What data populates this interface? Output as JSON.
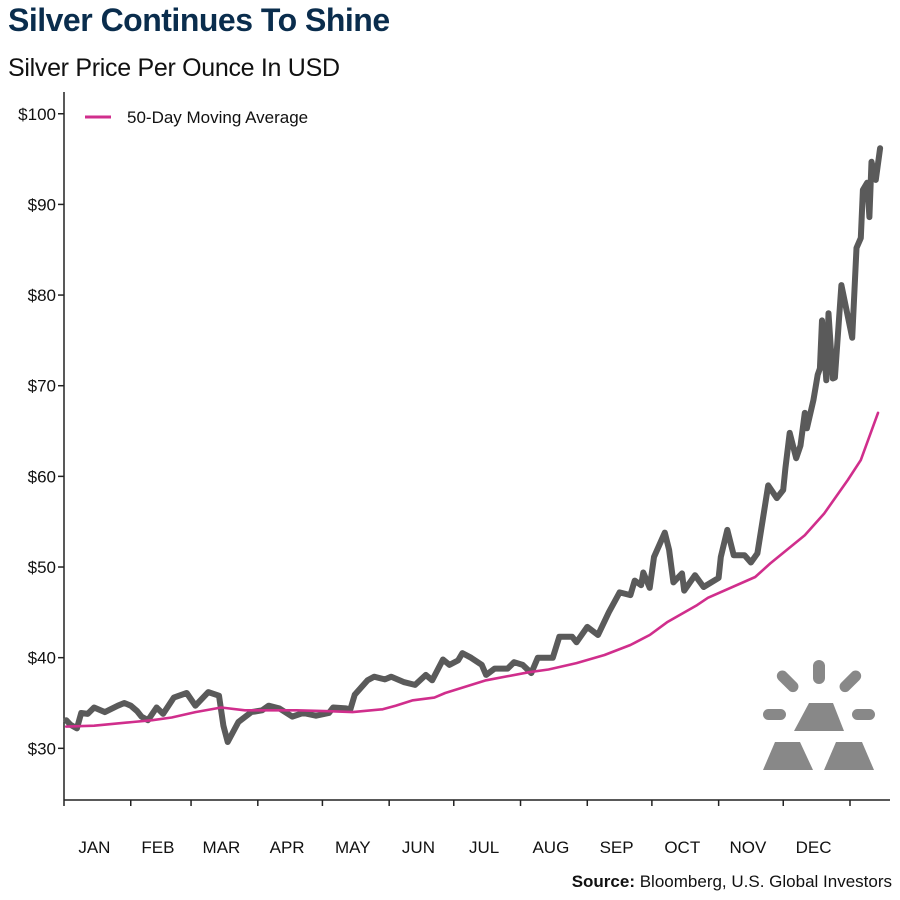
{
  "title": "Silver Continues To Shine",
  "subtitle": "Silver Price Per Ounce In USD",
  "source": {
    "label": "Source:",
    "text": "Bloomberg, U.S. Global Investors"
  },
  "colors": {
    "title": "#0a2d4d",
    "silver_price": "#5a5a5a",
    "moving_average": "#d02e8c",
    "icon": "#888888"
  },
  "icon": "silver-bars-icon",
  "chart_data": {
    "type": "line",
    "title": "Silver Continues To Shine",
    "subtitle": "Silver Price Per Ounce In USD",
    "xlabel": "",
    "ylabel": "",
    "ylim": [
      24.3,
      102.4
    ],
    "xlim": [
      "2025-01-01",
      "2026-01-19"
    ],
    "grid": false,
    "legend": {
      "placement": "top-left",
      "entries": [
        "50-Day Moving Average"
      ]
    },
    "y_ticks": [
      30,
      40,
      50,
      60,
      70,
      80,
      90,
      100
    ],
    "y_tick_labels": [
      "$30",
      "$40",
      "$50",
      "$60",
      "$70",
      "$80",
      "$90",
      "$100"
    ],
    "x_tick_labels": [
      "JAN",
      "FEB",
      "MAR",
      "APR",
      "MAY",
      "JUN",
      "JUL",
      "AUG",
      "SEP",
      "OCT",
      "NOV",
      "DEC"
    ],
    "series": [
      {
        "key": "silver",
        "color": "#5a5a5a",
        "points": [
          [
            "2025-01-02",
            33.1
          ],
          [
            "2025-01-04",
            32.6
          ],
          [
            "2025-01-07",
            32.2
          ],
          [
            "2025-01-09",
            33.9
          ],
          [
            "2025-01-12",
            33.8
          ],
          [
            "2025-01-15",
            34.5
          ],
          [
            "2025-01-20",
            34.0
          ],
          [
            "2025-01-26",
            34.7
          ],
          [
            "2025-01-29",
            35.0
          ],
          [
            "2025-02-01",
            34.7
          ],
          [
            "2025-02-04",
            34.1
          ],
          [
            "2025-02-06",
            33.5
          ],
          [
            "2025-02-09",
            33.1
          ],
          [
            "2025-02-13",
            34.5
          ],
          [
            "2025-02-16",
            33.8
          ],
          [
            "2025-02-21",
            35.6
          ],
          [
            "2025-02-27",
            36.1
          ],
          [
            "2025-03-03",
            34.7
          ],
          [
            "2025-03-09",
            36.2
          ],
          [
            "2025-03-14",
            35.8
          ],
          [
            "2025-03-16",
            32.5
          ],
          [
            "2025-03-18",
            30.7
          ],
          [
            "2025-03-23",
            32.9
          ],
          [
            "2025-03-29",
            34.0
          ],
          [
            "2025-04-03",
            34.2
          ],
          [
            "2025-04-06",
            34.7
          ],
          [
            "2025-04-11",
            34.4
          ],
          [
            "2025-04-17",
            33.5
          ],
          [
            "2025-04-22",
            33.9
          ],
          [
            "2025-04-28",
            33.6
          ],
          [
            "2025-05-04",
            33.9
          ],
          [
            "2025-05-06",
            34.5
          ],
          [
            "2025-05-12",
            34.4
          ],
          [
            "2025-05-14",
            34.3
          ],
          [
            "2025-05-16",
            35.9
          ],
          [
            "2025-05-22",
            37.5
          ],
          [
            "2025-05-25",
            37.9
          ],
          [
            "2025-05-30",
            37.6
          ],
          [
            "2025-06-02",
            37.9
          ],
          [
            "2025-06-08",
            37.3
          ],
          [
            "2025-06-13",
            37.0
          ],
          [
            "2025-06-18",
            38.1
          ],
          [
            "2025-06-21",
            37.5
          ],
          [
            "2025-06-26",
            39.8
          ],
          [
            "2025-06-29",
            39.2
          ],
          [
            "2025-07-03",
            39.7
          ],
          [
            "2025-07-05",
            40.5
          ],
          [
            "2025-07-09",
            40.0
          ],
          [
            "2025-07-14",
            39.2
          ],
          [
            "2025-07-16",
            38.1
          ],
          [
            "2025-07-20",
            38.8
          ],
          [
            "2025-07-26",
            38.8
          ],
          [
            "2025-07-29",
            39.5
          ],
          [
            "2025-08-02",
            39.2
          ],
          [
            "2025-08-06",
            38.3
          ],
          [
            "2025-08-09",
            40.0
          ],
          [
            "2025-08-16",
            40.0
          ],
          [
            "2025-08-19",
            42.3
          ],
          [
            "2025-08-25",
            42.3
          ],
          [
            "2025-08-27",
            41.7
          ],
          [
            "2025-09-01",
            43.4
          ],
          [
            "2025-09-06",
            42.5
          ],
          [
            "2025-09-11",
            45.0
          ],
          [
            "2025-09-16",
            47.2
          ],
          [
            "2025-09-21",
            46.9
          ],
          [
            "2025-09-23",
            48.5
          ],
          [
            "2025-09-26",
            48.0
          ],
          [
            "2025-09-27",
            49.4
          ],
          [
            "2025-09-30",
            47.7
          ],
          [
            "2025-10-02",
            51.1
          ],
          [
            "2025-10-07",
            53.8
          ],
          [
            "2025-10-09",
            51.9
          ],
          [
            "2025-10-11",
            48.3
          ],
          [
            "2025-10-15",
            49.3
          ],
          [
            "2025-10-16",
            47.4
          ],
          [
            "2025-10-21",
            49.1
          ],
          [
            "2025-10-25",
            47.8
          ],
          [
            "2025-11-01",
            48.8
          ],
          [
            "2025-11-02",
            51.1
          ],
          [
            "2025-11-05",
            54.1
          ],
          [
            "2025-11-08",
            51.3
          ],
          [
            "2025-11-13",
            51.3
          ],
          [
            "2025-11-16",
            50.5
          ],
          [
            "2025-11-19",
            51.5
          ],
          [
            "2025-11-24",
            59.0
          ],
          [
            "2025-11-28",
            57.6
          ],
          [
            "2025-12-01",
            58.5
          ],
          [
            "2025-12-02",
            60.9
          ],
          [
            "2025-12-04",
            64.8
          ],
          [
            "2025-12-07",
            62.0
          ],
          [
            "2025-12-09",
            63.4
          ],
          [
            "2025-12-11",
            67.0
          ],
          [
            "2025-12-12",
            65.3
          ],
          [
            "2025-12-15",
            68.4
          ],
          [
            "2025-12-17",
            71.2
          ],
          [
            "2025-12-18",
            71.9
          ],
          [
            "2025-12-19",
            77.2
          ],
          [
            "2025-12-21",
            70.6
          ],
          [
            "2025-12-22",
            78.0
          ],
          [
            "2025-12-24",
            70.8
          ],
          [
            "2025-12-25",
            70.9
          ],
          [
            "2025-12-28",
            81.1
          ],
          [
            "2026-01-02",
            75.3
          ],
          [
            "2026-01-04",
            85.2
          ],
          [
            "2026-01-06",
            86.3
          ],
          [
            "2026-01-07",
            91.6
          ],
          [
            "2026-01-09",
            92.4
          ],
          [
            "2026-01-10",
            88.6
          ],
          [
            "2026-01-11",
            94.7
          ],
          [
            "2026-01-13",
            92.7
          ],
          [
            "2026-01-15",
            96.2
          ]
        ]
      },
      {
        "key": "ma50",
        "name": "50-Day Moving Average",
        "color": "#d02e8c",
        "points": [
          [
            "2025-01-02",
            32.4
          ],
          [
            "2025-01-15",
            32.5
          ],
          [
            "2025-02-02",
            32.9
          ],
          [
            "2025-02-11",
            33.1
          ],
          [
            "2025-02-20",
            33.4
          ],
          [
            "2025-03-03",
            34.0
          ],
          [
            "2025-03-15",
            34.5
          ],
          [
            "2025-03-26",
            34.2
          ],
          [
            "2025-04-19",
            34.2
          ],
          [
            "2025-05-04",
            34.1
          ],
          [
            "2025-05-15",
            34.0
          ],
          [
            "2025-05-29",
            34.3
          ],
          [
            "2025-06-04",
            34.7
          ],
          [
            "2025-06-12",
            35.3
          ],
          [
            "2025-06-22",
            35.6
          ],
          [
            "2025-06-27",
            36.1
          ],
          [
            "2025-07-16",
            37.5
          ],
          [
            "2025-08-05",
            38.4
          ],
          [
            "2025-08-14",
            38.7
          ],
          [
            "2025-08-27",
            39.4
          ],
          [
            "2025-09-09",
            40.3
          ],
          [
            "2025-09-21",
            41.4
          ],
          [
            "2025-09-30",
            42.5
          ],
          [
            "2025-10-08",
            43.9
          ],
          [
            "2025-10-22",
            45.8
          ],
          [
            "2025-10-27",
            46.6
          ],
          [
            "2025-11-18",
            48.9
          ],
          [
            "2025-11-25",
            50.4
          ],
          [
            "2025-12-11",
            53.5
          ],
          [
            "2025-12-20",
            55.9
          ],
          [
            "2025-12-31",
            59.6
          ],
          [
            "2026-01-06",
            61.8
          ],
          [
            "2026-01-14",
            67.0
          ]
        ]
      }
    ]
  }
}
